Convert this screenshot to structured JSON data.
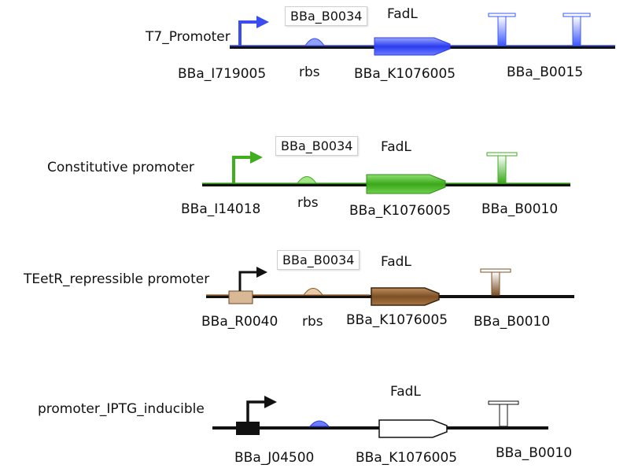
{
  "constructs": [
    {
      "promoter_name": "T7_Promoter",
      "rbs_box": "BBa_B0034",
      "gene": "FadL",
      "promoter_part": "BBa_I719005",
      "rbs_label": "rbs",
      "cds_part": "BBa_K1076005",
      "terminator_part": "BBa_B0015",
      "color": "#3b4cf0"
    },
    {
      "promoter_name": "Constitutive promoter",
      "rbs_box": "BBa_B0034",
      "gene": "FadL",
      "promoter_part": "BBa_I14018",
      "rbs_label": "rbs",
      "cds_part": "BBa_K1076005",
      "terminator_part": "BBa_B0010",
      "color": "#3fae1f"
    },
    {
      "promoter_name": "TEetR_repressible promoter",
      "rbs_box": "BBa_B0034",
      "gene": "FadL",
      "promoter_part": "BBa_R0040",
      "rbs_label": "rbs",
      "cds_part": "BBa_K1076005",
      "terminator_part": "BBa_B0010",
      "color": "#8a5a2b"
    },
    {
      "promoter_name": "promoter_IPTG_inducible",
      "gene": "FadL",
      "promoter_part": "BBa_J04500",
      "cds_part": "BBa_K1076005",
      "terminator_part": "BBa_B0010",
      "color": "#111111"
    }
  ]
}
